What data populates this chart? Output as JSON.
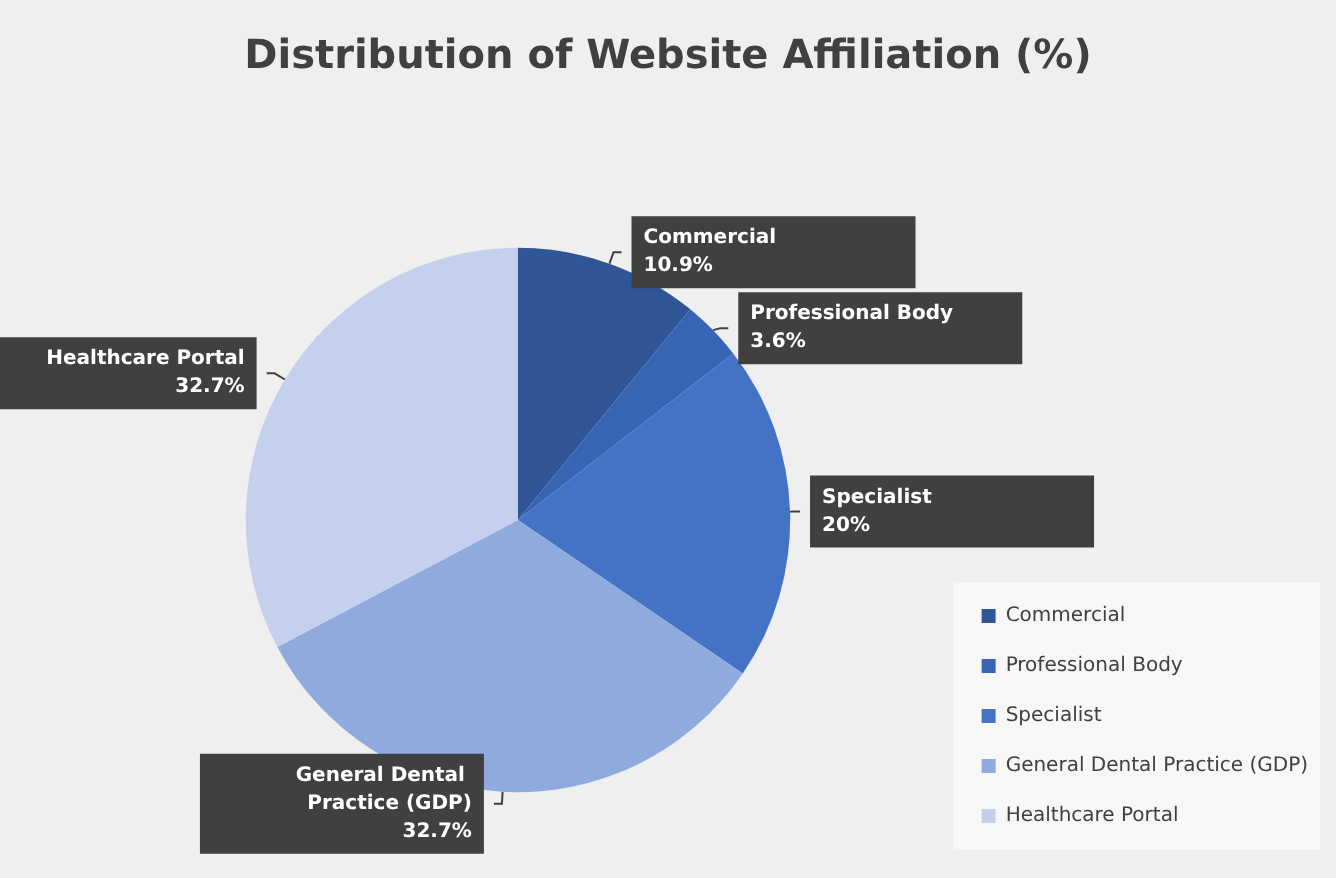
{
  "chart_data": {
    "type": "pie",
    "title": "Distribution of Website Affiliation (%)",
    "categories": [
      "Commercial",
      "Professional Body",
      "Specialist",
      "General Dental Practice (GDP)",
      "Healthcare Portal"
    ],
    "values": [
      10.9,
      3.6,
      20,
      32.7,
      32.7
    ],
    "value_labels": [
      "10.9%",
      "3.6%",
      "20%",
      "32.7%",
      "32.7%"
    ],
    "colors": [
      "#2f5597",
      "#3864b4",
      "#4472c4",
      "#8faadc",
      "#c5d0ee"
    ],
    "legend": "bottom right"
  }
}
